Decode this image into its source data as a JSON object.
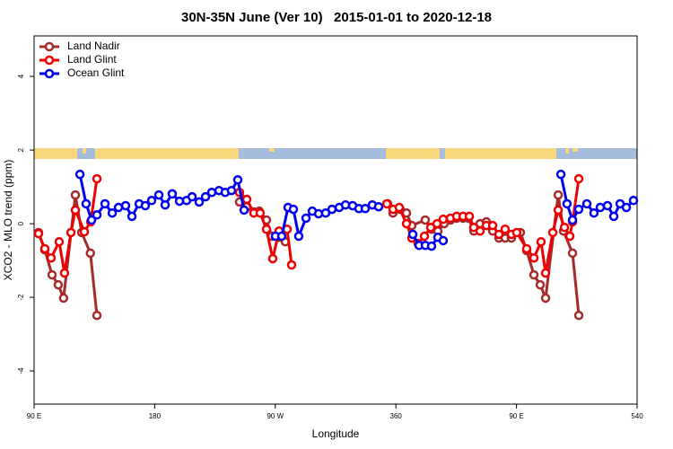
{
  "chart_data": {
    "type": "line",
    "title": "30N-35N June (Ver 10)   2015-01-01 to 2020-12-18",
    "xlabel": "Longitude",
    "ylabel": "XCO2 - MLO trend (ppm)",
    "xlim": [
      90,
      540
    ],
    "ylim": [
      -4.9,
      5.1
    ],
    "xticks": [
      {
        "value": 90,
        "label": "90 E"
      },
      180,
      {
        "value": 270,
        "label": "90 W"
      },
      360,
      {
        "value": 450,
        "label": "90 E"
      },
      540
    ],
    "yticks": [
      -4,
      -2,
      0,
      2,
      4
    ],
    "legend": "top-left",
    "series": [
      {
        "name": "Land Nadir",
        "color": "#a52a2a",
        "x": [
          93.3,
          98,
          103.4,
          108,
          112,
          120.8,
          125.5,
          132,
          136.9,
          null,
          243.3,
          248.7,
          254,
          258,
          263.4,
          267.4,
          272.8,
          277.5,
          null,
          353.8,
          357.8,
          363.2,
          367.9,
          371.9,
          381.9,
          386.6,
          391.3,
          396,
          400.7,
          405.4,
          410.1,
          414.1,
          418.2,
          422.8,
          427.5,
          432.2,
          436.9,
          441.5,
          446.2,
          452.9,
          457.6,
          463,
          467.7,
          471.7,
          481.1,
          485.1,
          491.8,
          496.5
        ],
        "values": [
          -0.24,
          -0.71,
          -1.39,
          -1.66,
          -2.02,
          0.78,
          -0.24,
          -0.8,
          -2.49,
          null,
          0.59,
          0.46,
          0.32,
          0.34,
          0.1,
          -0.34,
          -0.37,
          -0.49,
          null,
          0.54,
          0.29,
          0.39,
          0.29,
          -0.05,
          0.1,
          -0.15,
          -0.2,
          0,
          0.1,
          0.15,
          0.15,
          0.15,
          -0.2,
          0,
          0.05,
          -0.2,
          -0.39,
          -0.39,
          -0.39,
          -0.24,
          -0.73,
          -1.39,
          -1.66,
          -2.02,
          0.78,
          -0.2,
          -0.8,
          -2.49
        ]
      },
      {
        "name": "Land Glint",
        "color": "#ee0000",
        "x": [
          93.3,
          98,
          102.7,
          108.7,
          112.7,
          117.5,
          120.8,
          127.5,
          132.2,
          136.9,
          null,
          243.3,
          248.7,
          254,
          258.7,
          263.4,
          268.1,
          272.8,
          278.8,
          282.2,
          null,
          353.2,
          357.9,
          362.5,
          367.9,
          371.9,
          376.6,
          381.3,
          386,
          390.7,
          395.3,
          400.7,
          405.4,
          410.1,
          414.8,
          418.1,
          422.8,
          427.5,
          432.2,
          436.9,
          441.5,
          446.2,
          450.2,
          457.6,
          463,
          468.3,
          471.7,
          477.1,
          481.1,
          485.8,
          489.8,
          491.8,
          496.5
        ],
        "values": [
          -0.27,
          -0.68,
          -0.93,
          -0.49,
          -1.34,
          -0.24,
          0.37,
          -0.22,
          0.05,
          1.22,
          null,
          0.85,
          0.66,
          0.29,
          0.29,
          -0.15,
          -0.95,
          -0.2,
          -0.15,
          -1.12,
          null,
          0.54,
          0.39,
          0.44,
          0,
          -0.39,
          -0.54,
          -0.34,
          -0.1,
          0,
          0.12,
          0.15,
          0.2,
          0.2,
          0.2,
          -0.1,
          -0.2,
          -0.05,
          -0.05,
          -0.29,
          -0.15,
          -0.29,
          -0.24,
          -0.68,
          -0.93,
          -0.49,
          -1.34,
          -0.24,
          0.37,
          -0.1,
          -0.34,
          0.05,
          1.22
        ]
      },
      {
        "name": "Ocean Glint",
        "color": "#0000ee",
        "x": [
          124.2,
          128.8,
          132.9,
          136.9,
          142.9,
          148.3,
          153,
          158.3,
          163,
          168.4,
          173,
          177.7,
          183.1,
          187.8,
          193.1,
          198.5,
          203.8,
          207.9,
          213.2,
          217.9,
          222.6,
          228,
          232.6,
          237.3,
          242,
          246.7,
          null,
          270.1,
          274.8,
          279.5,
          283.5,
          287.5,
          292.9,
          297.6,
          302.3,
          307.6,
          312.3,
          317.7,
          322.4,
          327.7,
          332.4,
          337.1,
          342.4,
          347.1,
          null,
          372.6,
          377.3,
          382,
          386.6,
          391.3,
          395.3,
          null,
          483.1,
          487.7,
          491.8,
          496.4,
          502.5,
          507.8,
          512.5,
          517.9,
          522.6,
          527.3,
          532,
          537.3
        ],
        "values": [
          1.34,
          0.54,
          0.1,
          0.24,
          0.54,
          0.29,
          0.44,
          0.49,
          0.2,
          0.54,
          0.49,
          0.63,
          0.78,
          0.51,
          0.81,
          0.61,
          0.63,
          0.73,
          0.59,
          0.73,
          0.85,
          0.9,
          0.85,
          0.9,
          1.19,
          0.37,
          null,
          -0.34,
          -0.34,
          0.44,
          0.39,
          -0.34,
          0.15,
          0.34,
          0.27,
          0.29,
          0.39,
          0.44,
          0.51,
          0.49,
          0.41,
          0.41,
          0.51,
          0.46,
          null,
          -0.29,
          -0.59,
          -0.59,
          -0.61,
          -0.37,
          -0.46,
          null,
          1.34,
          0.54,
          0.1,
          0.39,
          0.54,
          0.29,
          0.44,
          0.49,
          0.2,
          0.54,
          0.44,
          0.63
        ]
      }
    ]
  }
}
